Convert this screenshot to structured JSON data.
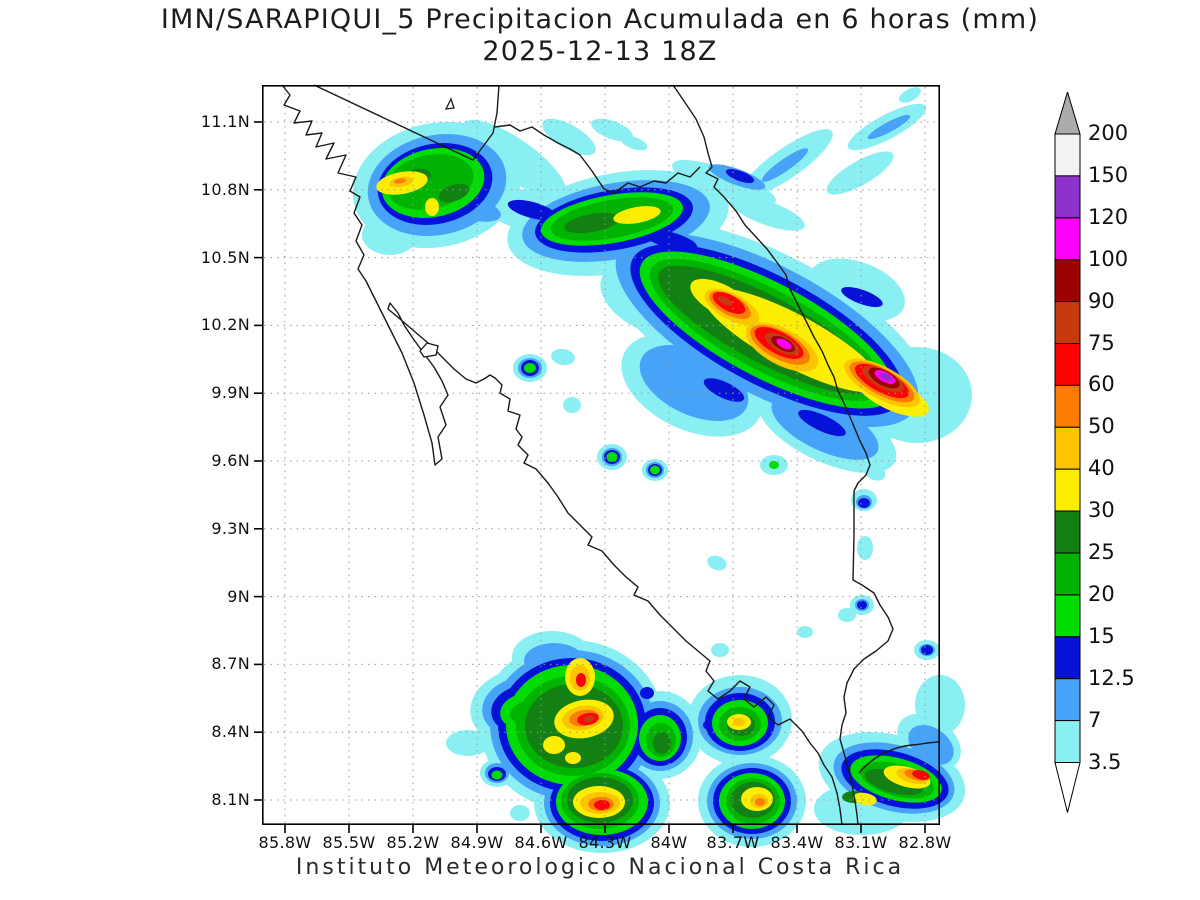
{
  "title": {
    "line1": "IMN/SARAPIQUI_5 Precipitacion Acumulada en 6 horas (mm)",
    "line2": "2025-12-13 18Z"
  },
  "footer": {
    "text": "Instituto Meteorologico Nacional Costa Rica"
  },
  "map": {
    "x_tick_labels": [
      "85.8W",
      "85.5W",
      "85.2W",
      "84.9W",
      "84.6W",
      "84.3W",
      "84W",
      "83.7W",
      "83.4W",
      "83.1W",
      "82.8W"
    ],
    "y_tick_labels": [
      "11.1N",
      "10.8N",
      "10.5N",
      "10.2N",
      "9.9N",
      "9.6N",
      "9.3N",
      "9N",
      "8.7N",
      "8.4N",
      "8.1N"
    ]
  },
  "colorbar": {
    "boundary_labels_top_to_bottom": [
      "200",
      "150",
      "120",
      "100",
      "90",
      "75",
      "60",
      "50",
      "40",
      "30",
      "25",
      "20",
      "15",
      "12.5",
      "7",
      "3.5"
    ],
    "cell_levels_top_to_bottom": [
      "150",
      "120",
      "100",
      "90",
      "75",
      "60",
      "50",
      "40",
      "30",
      "25",
      "20",
      "15",
      "12_5",
      "7",
      "3_5"
    ],
    "arrow_top_color": "#ababab",
    "arrow_bottom_color": "#ffffff",
    "units": "mm"
  },
  "palette": {
    "3_5": "#8aeff2",
    "7": "#47a3f8",
    "12_5": "#0712d8",
    "15": "#02dc02",
    "20": "#00b300",
    "25": "#128012",
    "30": "#fcee00",
    "40": "#fdc400",
    "50": "#fe7d00",
    "60": "#fc0404",
    "75": "#c63a10",
    "90": "#9b0303",
    "100": "#fb00fb",
    "120": "#8d33cb",
    "150": "#f2f2f2",
    "200": "#ababab"
  }
}
